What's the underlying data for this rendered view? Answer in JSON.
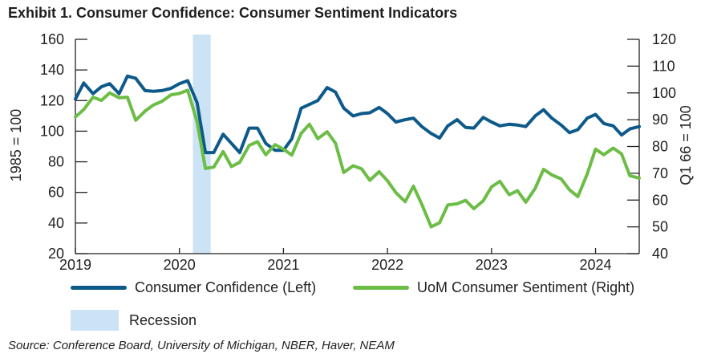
{
  "title": "Exhibit 1. Consumer Confidence: Consumer Sentiment Indicators",
  "source": "Source: Conference Board, University of Michigan, NBER, Haver, NEAM",
  "colors": {
    "confidence": "#0d5a8a",
    "sentiment": "#6cbd45",
    "recession": "#cce2f5"
  },
  "chart_data": {
    "type": "line",
    "title": "Exhibit 1. Consumer Confidence: Consumer Sentiment Indicators",
    "ylabel_left": "1985 = 100",
    "ylabel_right": "Q1 66 = 100",
    "ylim_left": [
      20,
      160
    ],
    "ylim_right": [
      40,
      120
    ],
    "yticks_left": [
      "20",
      "40",
      "60",
      "80",
      "100",
      "120",
      "140",
      "160"
    ],
    "yticks_right": [
      "40",
      "50",
      "60",
      "70",
      "80",
      "90",
      "100",
      "110",
      "120"
    ],
    "xlim": [
      2019.0,
      2024.42
    ],
    "xticks": [
      "2019",
      "2020",
      "2021",
      "2022",
      "2023",
      "2024"
    ],
    "recession": {
      "label": "Recession",
      "start": 2020.13,
      "end": 2020.3
    },
    "series": [
      {
        "name": "Consumer Confidence (Left)",
        "axis": "left",
        "x": [
          2019.0,
          2019.08,
          2019.17,
          2019.25,
          2019.33,
          2019.42,
          2019.5,
          2019.58,
          2019.67,
          2019.75,
          2019.83,
          2019.92,
          2020.0,
          2020.08,
          2020.17,
          2020.25,
          2020.33,
          2020.42,
          2020.5,
          2020.58,
          2020.67,
          2020.75,
          2020.83,
          2020.92,
          2021.0,
          2021.08,
          2021.17,
          2021.25,
          2021.33,
          2021.42,
          2021.5,
          2021.58,
          2021.67,
          2021.75,
          2021.83,
          2021.92,
          2022.0,
          2022.08,
          2022.17,
          2022.25,
          2022.33,
          2022.42,
          2022.5,
          2022.58,
          2022.67,
          2022.75,
          2022.83,
          2022.92,
          2023.0,
          2023.08,
          2023.17,
          2023.25,
          2023.33,
          2023.42,
          2023.5,
          2023.58,
          2023.67,
          2023.75,
          2023.83,
          2023.92,
          2024.0,
          2024.08,
          2024.17,
          2024.25,
          2024.33,
          2024.42
        ],
        "values": [
          121,
          131.5,
          124.5,
          129,
          131,
          124.5,
          136,
          134.5,
          126.5,
          126,
          126.5,
          128,
          131,
          133,
          118.5,
          86,
          86,
          98,
          92,
          86,
          102,
          102,
          92,
          87.5,
          87.5,
          95,
          115,
          117.5,
          120,
          128.5,
          125.5,
          115,
          110,
          111.5,
          112,
          115.5,
          111.5,
          106,
          107.5,
          108.5,
          103,
          98.5,
          95.5,
          103.5,
          107.5,
          102.5,
          102,
          109,
          106,
          103.5,
          104.5,
          104,
          103,
          110,
          114,
          108.5,
          104,
          99,
          101,
          108.5,
          110.9,
          105,
          103.5,
          97.5,
          101.5,
          103
        ]
      },
      {
        "name": "UoM Consumer Sentiment (Right)",
        "axis": "right",
        "x": [
          2019.0,
          2019.08,
          2019.17,
          2019.25,
          2019.33,
          2019.42,
          2019.5,
          2019.58,
          2019.67,
          2019.75,
          2019.83,
          2019.92,
          2020.0,
          2020.08,
          2020.17,
          2020.25,
          2020.33,
          2020.42,
          2020.5,
          2020.58,
          2020.67,
          2020.75,
          2020.83,
          2020.92,
          2021.0,
          2021.08,
          2021.17,
          2021.25,
          2021.33,
          2021.42,
          2021.5,
          2021.58,
          2021.67,
          2021.75,
          2021.83,
          2021.92,
          2022.0,
          2022.08,
          2022.17,
          2022.25,
          2022.33,
          2022.42,
          2022.5,
          2022.58,
          2022.67,
          2022.75,
          2022.83,
          2022.92,
          2023.0,
          2023.08,
          2023.17,
          2023.25,
          2023.33,
          2023.42,
          2023.5,
          2023.58,
          2023.67,
          2023.75,
          2023.83,
          2023.92,
          2024.0,
          2024.08,
          2024.17,
          2024.25,
          2024.33,
          2024.42
        ],
        "values": [
          91,
          93.8,
          98.4,
          97.2,
          100,
          98.2,
          98.4,
          89.8,
          93.2,
          95.5,
          96.8,
          99.3,
          99.8,
          101,
          89.1,
          71.8,
          72.3,
          78.1,
          72.5,
          74.1,
          80.4,
          81.8,
          76.9,
          80.7,
          79,
          76.8,
          84.9,
          88.3,
          82.9,
          85.5,
          81.2,
          70.3,
          72.8,
          71.7,
          67.4,
          70.6,
          67.2,
          62.8,
          59.4,
          65.2,
          58.4,
          50,
          51.5,
          58.2,
          58.6,
          59.9,
          56.8,
          59.7,
          64.9,
          67,
          62,
          63.5,
          59.2,
          64.4,
          71.5,
          69.4,
          67.9,
          63.8,
          61.3,
          69.7,
          79,
          76.9,
          79.4,
          77.2,
          69.1,
          68.2
        ]
      }
    ]
  }
}
